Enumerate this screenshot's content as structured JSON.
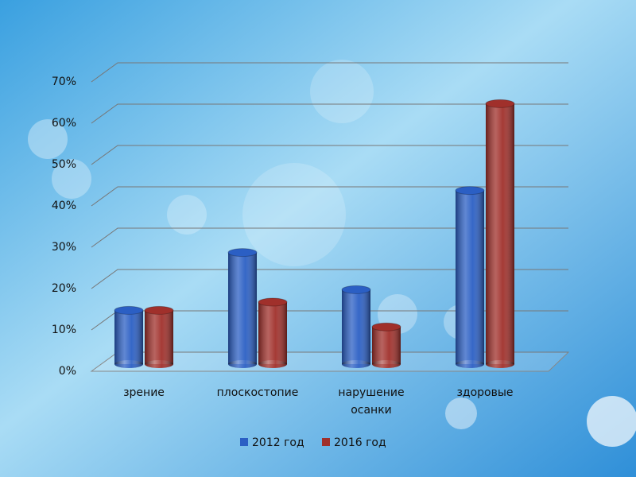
{
  "chart_data": {
    "type": "bar",
    "categories": [
      "зрение",
      "плоскостопие",
      "нарушение осанки",
      "здоровые"
    ],
    "series": [
      {
        "name": "2012 год",
        "color": "#2b5fc4",
        "values": [
          13,
          27,
          18,
          42
        ]
      },
      {
        "name": "2016 год",
        "color": "#a0302b",
        "values": [
          13,
          15,
          9,
          63
        ]
      }
    ],
    "ylim": [
      0,
      70
    ],
    "yticks": [
      {
        "value": 0,
        "label": "0%"
      },
      {
        "value": 10,
        "label": "10%"
      },
      {
        "value": 20,
        "label": "20%"
      },
      {
        "value": 30,
        "label": "30%"
      },
      {
        "value": 40,
        "label": "40%"
      },
      {
        "value": 50,
        "label": "50%"
      },
      {
        "value": 60,
        "label": "60%"
      },
      {
        "value": 70,
        "label": "70%"
      }
    ],
    "grid": true,
    "legend": "bottom"
  }
}
